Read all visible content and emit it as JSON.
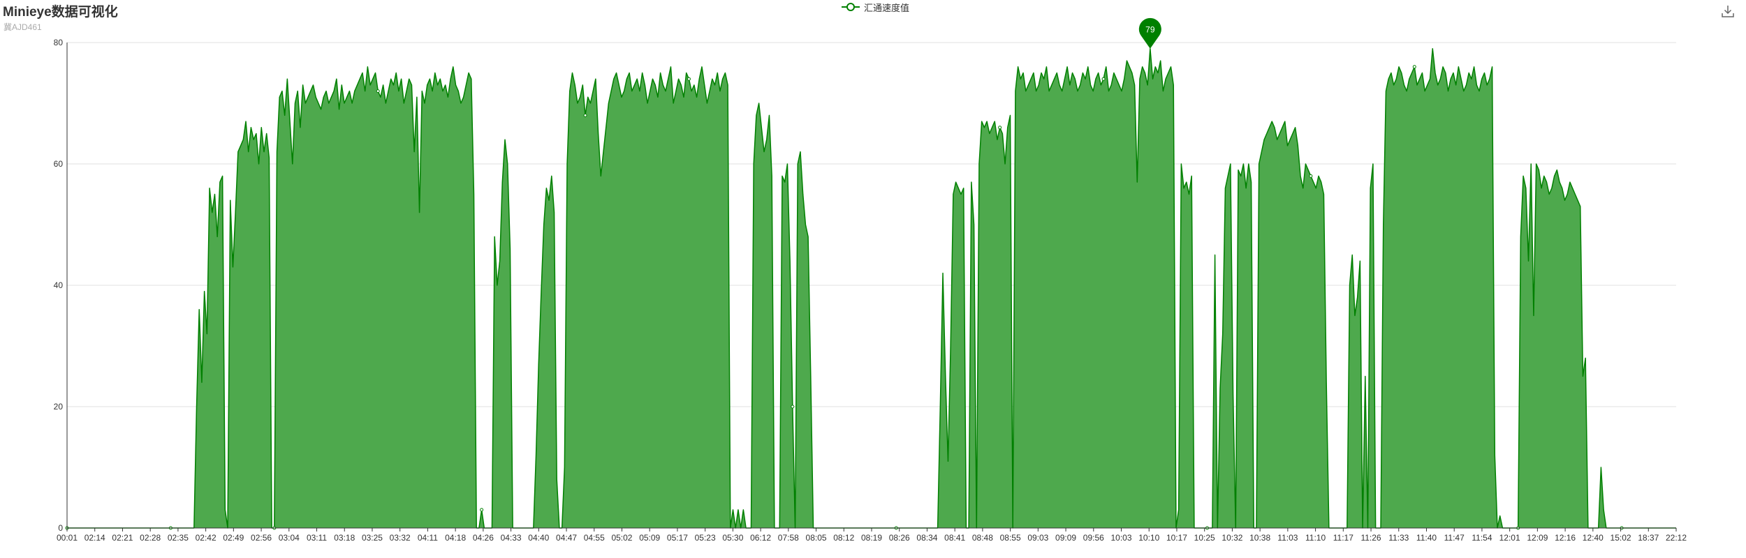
{
  "header": {
    "title": "Minieye数据可视化",
    "subtitle": "冀AJD461"
  },
  "legend": {
    "label": "汇通速度值"
  },
  "toolbox": {
    "save_icon": "download-icon"
  },
  "colors": {
    "series": "#008000",
    "area": "#4ea94d",
    "grid": "#e0e0e0",
    "axis": "#333333"
  },
  "marker": {
    "value": 79,
    "icon": "map-pin-icon"
  },
  "chart_data": {
    "type": "area",
    "title": "Minieye数据可视化",
    "subtitle": "冀AJD461",
    "xlabel": "",
    "ylabel": "",
    "ylim": [
      0,
      80
    ],
    "yticks": [
      0,
      20,
      40,
      60,
      80
    ],
    "grid": true,
    "legend_placement": "top-center",
    "xtick_labels": [
      "00:01",
      "02:14",
      "02:21",
      "02:28",
      "02:35",
      "02:42",
      "02:49",
      "02:56",
      "03:04",
      "03:11",
      "03:18",
      "03:25",
      "03:32",
      "04:11",
      "04:18",
      "04:26",
      "04:33",
      "04:40",
      "04:47",
      "04:55",
      "05:02",
      "05:09",
      "05:17",
      "05:23",
      "05:30",
      "06:12",
      "07:58",
      "08:05",
      "08:12",
      "08:19",
      "08:26",
      "08:34",
      "08:41",
      "08:48",
      "08:55",
      "09:03",
      "09:09",
      "09:56",
      "10:03",
      "10:10",
      "10:17",
      "10:25",
      "10:32",
      "10:38",
      "11:03",
      "11:10",
      "11:17",
      "11:26",
      "11:33",
      "11:40",
      "11:47",
      "11:54",
      "12:01",
      "12:09",
      "12:16",
      "12:40",
      "15:02",
      "18:37",
      "22:12"
    ],
    "series": [
      {
        "name": "汇通速度值",
        "values": [
          0,
          0,
          0,
          0,
          0,
          0,
          0,
          0,
          0,
          0,
          0,
          0,
          0,
          0,
          0,
          0,
          0,
          0,
          0,
          0,
          0,
          0,
          0,
          0,
          0,
          0,
          0,
          0,
          0,
          0,
          0,
          0,
          0,
          0,
          0,
          0,
          0,
          0,
          0,
          0,
          0,
          0,
          0,
          0,
          0,
          0,
          0,
          0,
          0,
          0,
          20,
          36,
          24,
          39,
          32,
          56,
          52,
          55,
          48,
          57,
          58,
          3,
          0,
          54,
          43,
          52,
          62,
          63,
          64,
          67,
          62,
          66,
          64,
          65,
          60,
          66,
          62,
          65,
          61,
          0,
          0,
          62,
          71,
          72,
          68,
          74,
          67,
          60,
          70,
          72,
          66,
          73,
          70,
          71,
          72,
          73,
          71,
          70,
          69,
          71,
          72,
          70,
          71,
          72,
          74,
          69,
          73,
          70,
          71,
          72,
          70,
          72,
          73,
          74,
          75,
          72,
          76,
          73,
          74,
          75,
          72,
          71,
          73,
          70,
          72,
          74,
          73,
          75,
          72,
          74,
          70,
          72,
          74,
          73,
          62,
          71,
          52,
          72,
          70,
          73,
          74,
          72,
          75,
          73,
          74,
          72,
          73,
          71,
          74,
          76,
          73,
          72,
          70,
          71,
          73,
          75,
          74,
          55,
          0,
          0,
          3,
          0,
          0,
          0,
          0,
          48,
          40,
          44,
          57,
          64,
          60,
          46,
          0,
          0,
          0,
          0,
          0,
          0,
          0,
          0,
          0,
          12,
          27,
          39,
          50,
          56,
          54,
          58,
          52,
          8,
          0,
          0,
          10,
          60,
          72,
          75,
          73,
          70,
          71,
          73,
          68,
          71,
          70,
          72,
          74,
          65,
          58,
          62,
          66,
          70,
          72,
          74,
          75,
          73,
          71,
          72,
          74,
          75,
          72,
          73,
          74,
          72,
          75,
          73,
          70,
          72,
          74,
          73,
          71,
          75,
          73,
          72,
          74,
          76,
          70,
          72,
          74,
          73,
          71,
          75,
          74,
          72,
          73,
          71,
          74,
          76,
          73,
          70,
          72,
          74,
          73,
          75,
          72,
          74,
          75,
          73,
          0,
          3,
          0,
          3,
          0,
          3,
          0,
          0,
          0,
          60,
          68,
          70,
          66,
          62,
          64,
          68,
          58,
          0,
          0,
          0,
          58,
          57,
          60,
          44,
          20,
          0,
          60,
          62,
          55,
          50,
          48,
          25,
          0,
          0,
          0,
          0,
          0,
          0,
          0,
          0,
          0,
          0,
          0,
          0,
          0,
          0,
          0,
          0,
          0,
          0,
          0,
          0,
          0,
          0,
          0,
          0,
          0,
          0,
          0,
          0,
          0,
          0,
          0,
          0,
          0,
          0,
          0,
          0,
          0,
          0,
          0,
          0,
          0,
          0,
          0,
          0,
          0,
          0,
          0,
          0,
          0,
          20,
          42,
          25,
          11,
          30,
          55,
          57,
          56,
          55,
          56,
          0,
          0,
          57,
          50,
          0,
          60,
          67,
          66,
          67,
          65,
          66,
          67,
          64,
          66,
          65,
          60,
          66,
          68,
          0,
          72,
          76,
          74,
          75,
          72,
          73,
          74,
          75,
          72,
          73,
          75,
          74,
          76,
          72,
          73,
          74,
          75,
          73,
          72,
          74,
          76,
          73,
          75,
          74,
          72,
          73,
          75,
          74,
          76,
          73,
          72,
          74,
          75,
          73,
          74,
          76,
          72,
          73,
          75,
          74,
          73,
          72,
          74,
          77,
          76,
          75,
          73,
          57,
          74,
          76,
          75,
          73,
          79,
          74,
          76,
          75,
          77,
          72,
          74,
          75,
          76,
          73,
          0,
          3,
          60,
          56,
          57,
          55,
          58,
          0,
          0,
          0,
          0,
          0,
          0,
          0,
          0,
          45,
          0,
          23,
          32,
          56,
          58,
          60,
          22,
          0,
          59,
          58,
          60,
          56,
          60,
          57,
          0,
          0,
          60,
          62,
          64,
          65,
          66,
          67,
          66,
          64,
          65,
          66,
          67,
          63,
          64,
          65,
          66,
          63,
          58,
          56,
          60,
          59,
          58,
          57,
          56,
          58,
          57,
          55,
          24,
          0,
          0,
          0,
          0,
          0,
          0,
          0,
          0,
          40,
          45,
          35,
          38,
          44,
          0,
          25,
          0,
          56,
          60,
          0,
          0,
          0,
          50,
          72,
          74,
          75,
          73,
          74,
          76,
          75,
          73,
          72,
          74,
          75,
          76,
          73,
          74,
          75,
          72,
          73,
          74,
          79,
          75,
          73,
          74,
          76,
          75,
          72,
          74,
          75,
          73,
          76,
          74,
          72,
          73,
          75,
          74,
          76,
          73,
          72,
          74,
          75,
          73,
          74,
          76,
          12,
          0,
          2,
          0,
          0,
          0,
          0,
          0,
          0,
          0,
          48,
          58,
          56,
          44,
          60,
          35,
          60,
          59,
          56,
          58,
          57,
          55,
          56,
          58,
          59,
          57,
          56,
          54,
          55,
          57,
          56,
          55,
          54,
          53,
          25,
          28,
          0,
          0,
          0,
          0,
          0,
          10,
          3,
          0,
          0,
          0,
          0,
          0,
          0,
          0,
          0,
          0,
          0,
          0,
          0,
          0,
          0,
          0,
          0,
          0,
          0,
          0,
          0,
          0,
          0,
          0,
          0,
          0,
          0,
          0,
          0
        ]
      }
    ],
    "markPoint": {
      "type": "max",
      "value": 79
    }
  }
}
